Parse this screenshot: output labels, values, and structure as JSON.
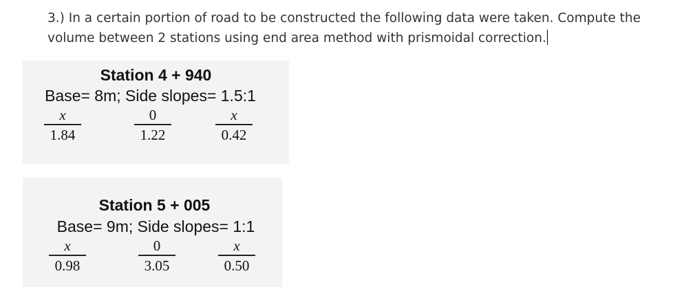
{
  "question": "3.) In a certain portion of road to be constructed the following data were taken. Compute the volume between 2 stations using end area method with prismoidal correction.",
  "stations": [
    {
      "title": "Station 4 + 940",
      "subtitle": "Base= 8m; Side slopes= 1.5:1",
      "sections": [
        {
          "num": "x",
          "den": "1.84"
        },
        {
          "num": "0",
          "den": "1.22"
        },
        {
          "num": "x",
          "den": "0.42"
        }
      ]
    },
    {
      "title": "Station 5 + 005",
      "subtitle": "Base= 9m; Side slopes= 1:1",
      "sections": [
        {
          "num": "x",
          "den": "0.98"
        },
        {
          "num": "0",
          "den": "3.05"
        },
        {
          "num": "x",
          "den": "0.50"
        }
      ]
    }
  ]
}
